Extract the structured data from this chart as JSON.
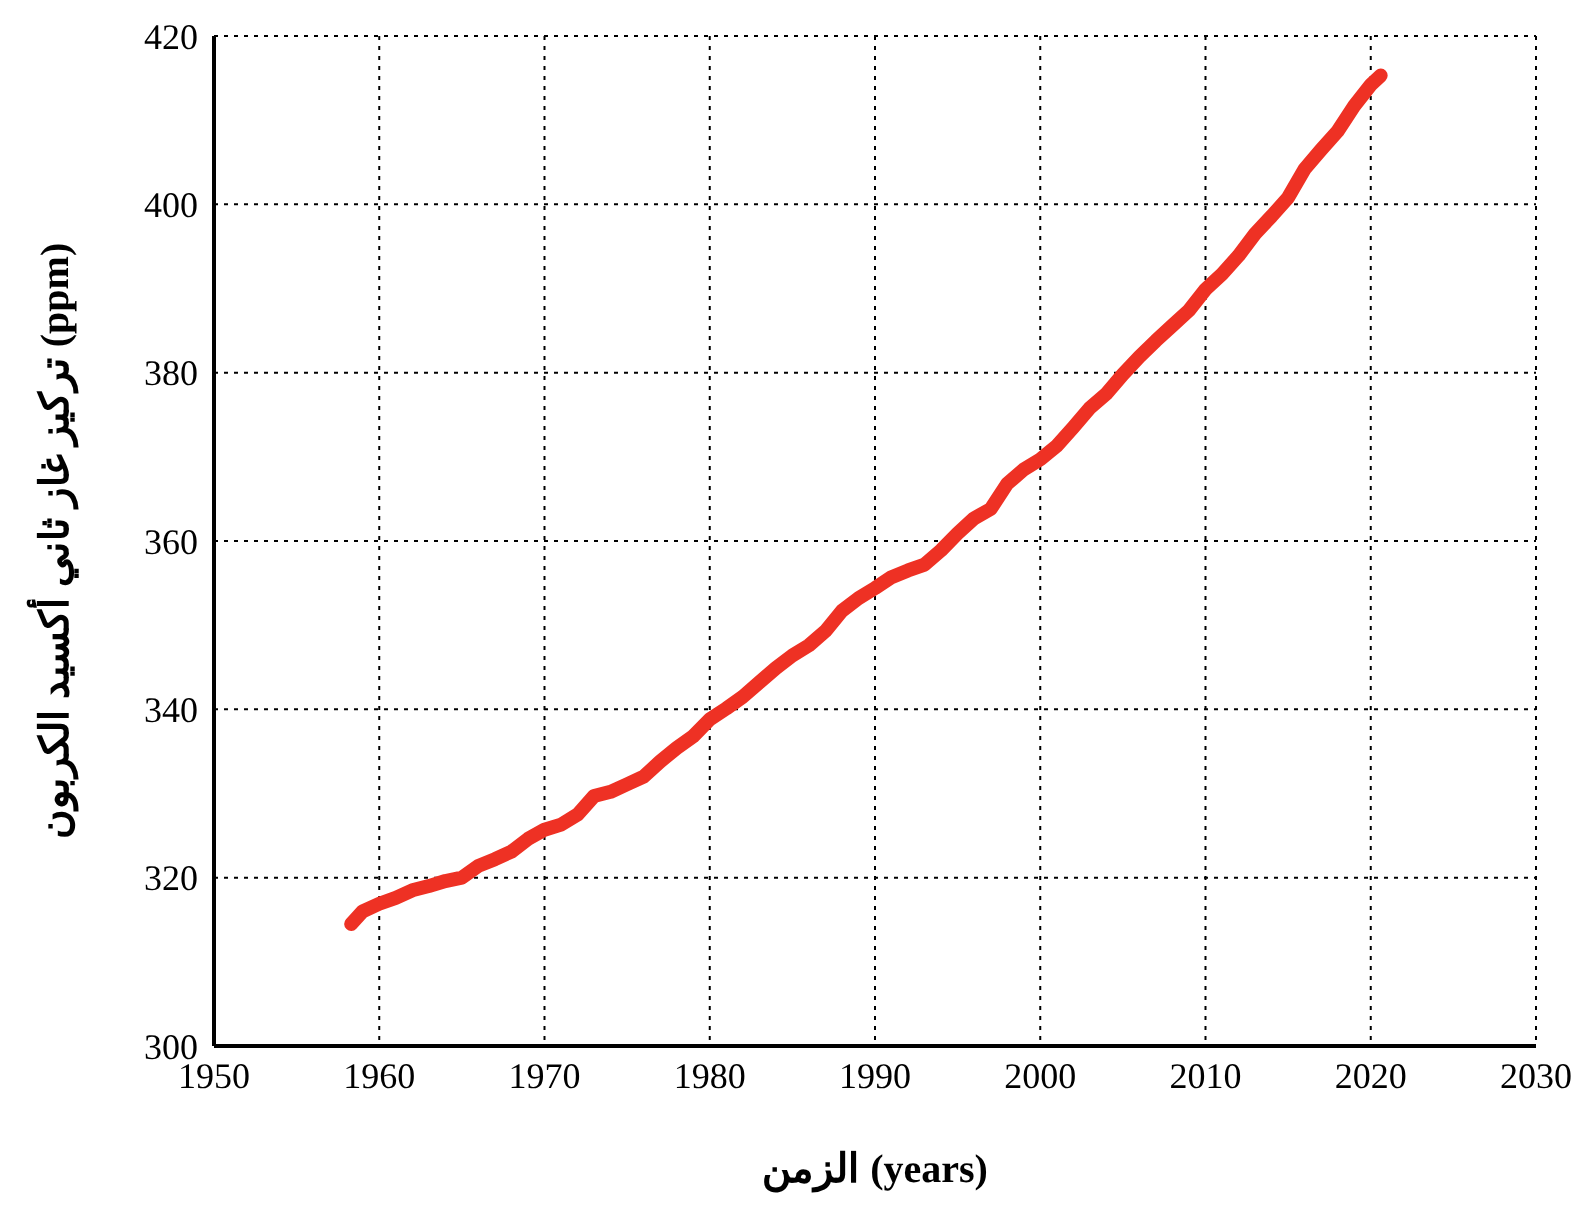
{
  "chart_data": {
    "type": "line",
    "xlabel": "الزمن (years)",
    "ylabel": "تركيز غاز ثاني أكسيد الكربون (ppm)",
    "x": [
      1958.3,
      1959,
      1960,
      1961,
      1962,
      1963,
      1964,
      1965,
      1966,
      1967,
      1968,
      1969,
      1970,
      1971,
      1972,
      1973,
      1974,
      1975,
      1976,
      1977,
      1978,
      1979,
      1980,
      1981,
      1982,
      1983,
      1984,
      1985,
      1986,
      1987,
      1988,
      1989,
      1990,
      1991,
      1992,
      1993,
      1994,
      1995,
      1996,
      1997,
      1998,
      1999,
      2000,
      2001,
      2002,
      2003,
      2004,
      2005,
      2006,
      2007,
      2008,
      2009,
      2010,
      2011,
      2012,
      2013,
      2014,
      2015,
      2016,
      2017,
      2018,
      2019,
      2020,
      2020.6
    ],
    "series": [
      {
        "color": "#ee3124",
        "values": [
          314.5,
          316.0,
          316.9,
          317.6,
          318.5,
          319.0,
          319.6,
          320.0,
          321.4,
          322.2,
          323.1,
          324.6,
          325.7,
          326.3,
          327.5,
          329.7,
          330.2,
          331.1,
          332.0,
          333.8,
          335.4,
          336.8,
          338.8,
          340.1,
          341.5,
          343.2,
          344.9,
          346.4,
          347.6,
          349.3,
          351.7,
          353.2,
          354.4,
          355.7,
          356.5,
          357.2,
          358.9,
          360.9,
          362.7,
          363.8,
          366.8,
          368.5,
          369.7,
          371.3,
          373.5,
          375.8,
          377.5,
          379.8,
          381.9,
          383.8,
          385.6,
          387.4,
          389.9,
          391.7,
          393.9,
          396.5,
          398.6,
          400.8,
          404.2,
          406.5,
          408.7,
          411.7,
          414.2,
          415.3
        ]
      }
    ],
    "xlim": [
      1950,
      2030
    ],
    "xticks": [
      1950,
      1960,
      1970,
      1980,
      1990,
      2000,
      2010,
      2020,
      2030
    ],
    "ylim": [
      300,
      420
    ],
    "yticks": [
      300,
      320,
      340,
      360,
      380,
      400,
      420
    ],
    "grid": true,
    "legend": false,
    "marker": "none",
    "line_style": "solid"
  }
}
